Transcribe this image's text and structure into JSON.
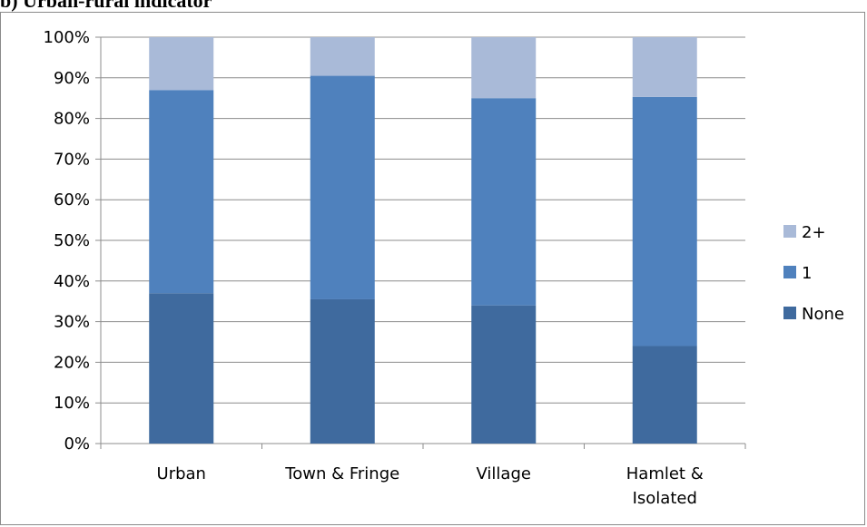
{
  "heading": "b) Urban-rural indicator",
  "chart_data": {
    "type": "bar",
    "stacked": true,
    "percent": true,
    "categories": [
      "Urban",
      "Town & Fringe",
      "Village",
      "Hamlet & Isolated"
    ],
    "series": [
      {
        "name": "None",
        "color": "#3f6a9e",
        "values": [
          37,
          35.5,
          34,
          24
        ]
      },
      {
        "name": "1",
        "color": "#4f81bd",
        "values": [
          50,
          55,
          51,
          61.3
        ]
      },
      {
        "name": "2+",
        "color": "#a9bad8",
        "values": [
          13,
          9.5,
          15,
          14.7
        ]
      }
    ],
    "y_ticks": [
      "0%",
      "10%",
      "20%",
      "30%",
      "40%",
      "50%",
      "60%",
      "70%",
      "80%",
      "90%",
      "100%"
    ],
    "ylim": [
      0,
      100
    ],
    "grid": true,
    "legend": "right"
  }
}
